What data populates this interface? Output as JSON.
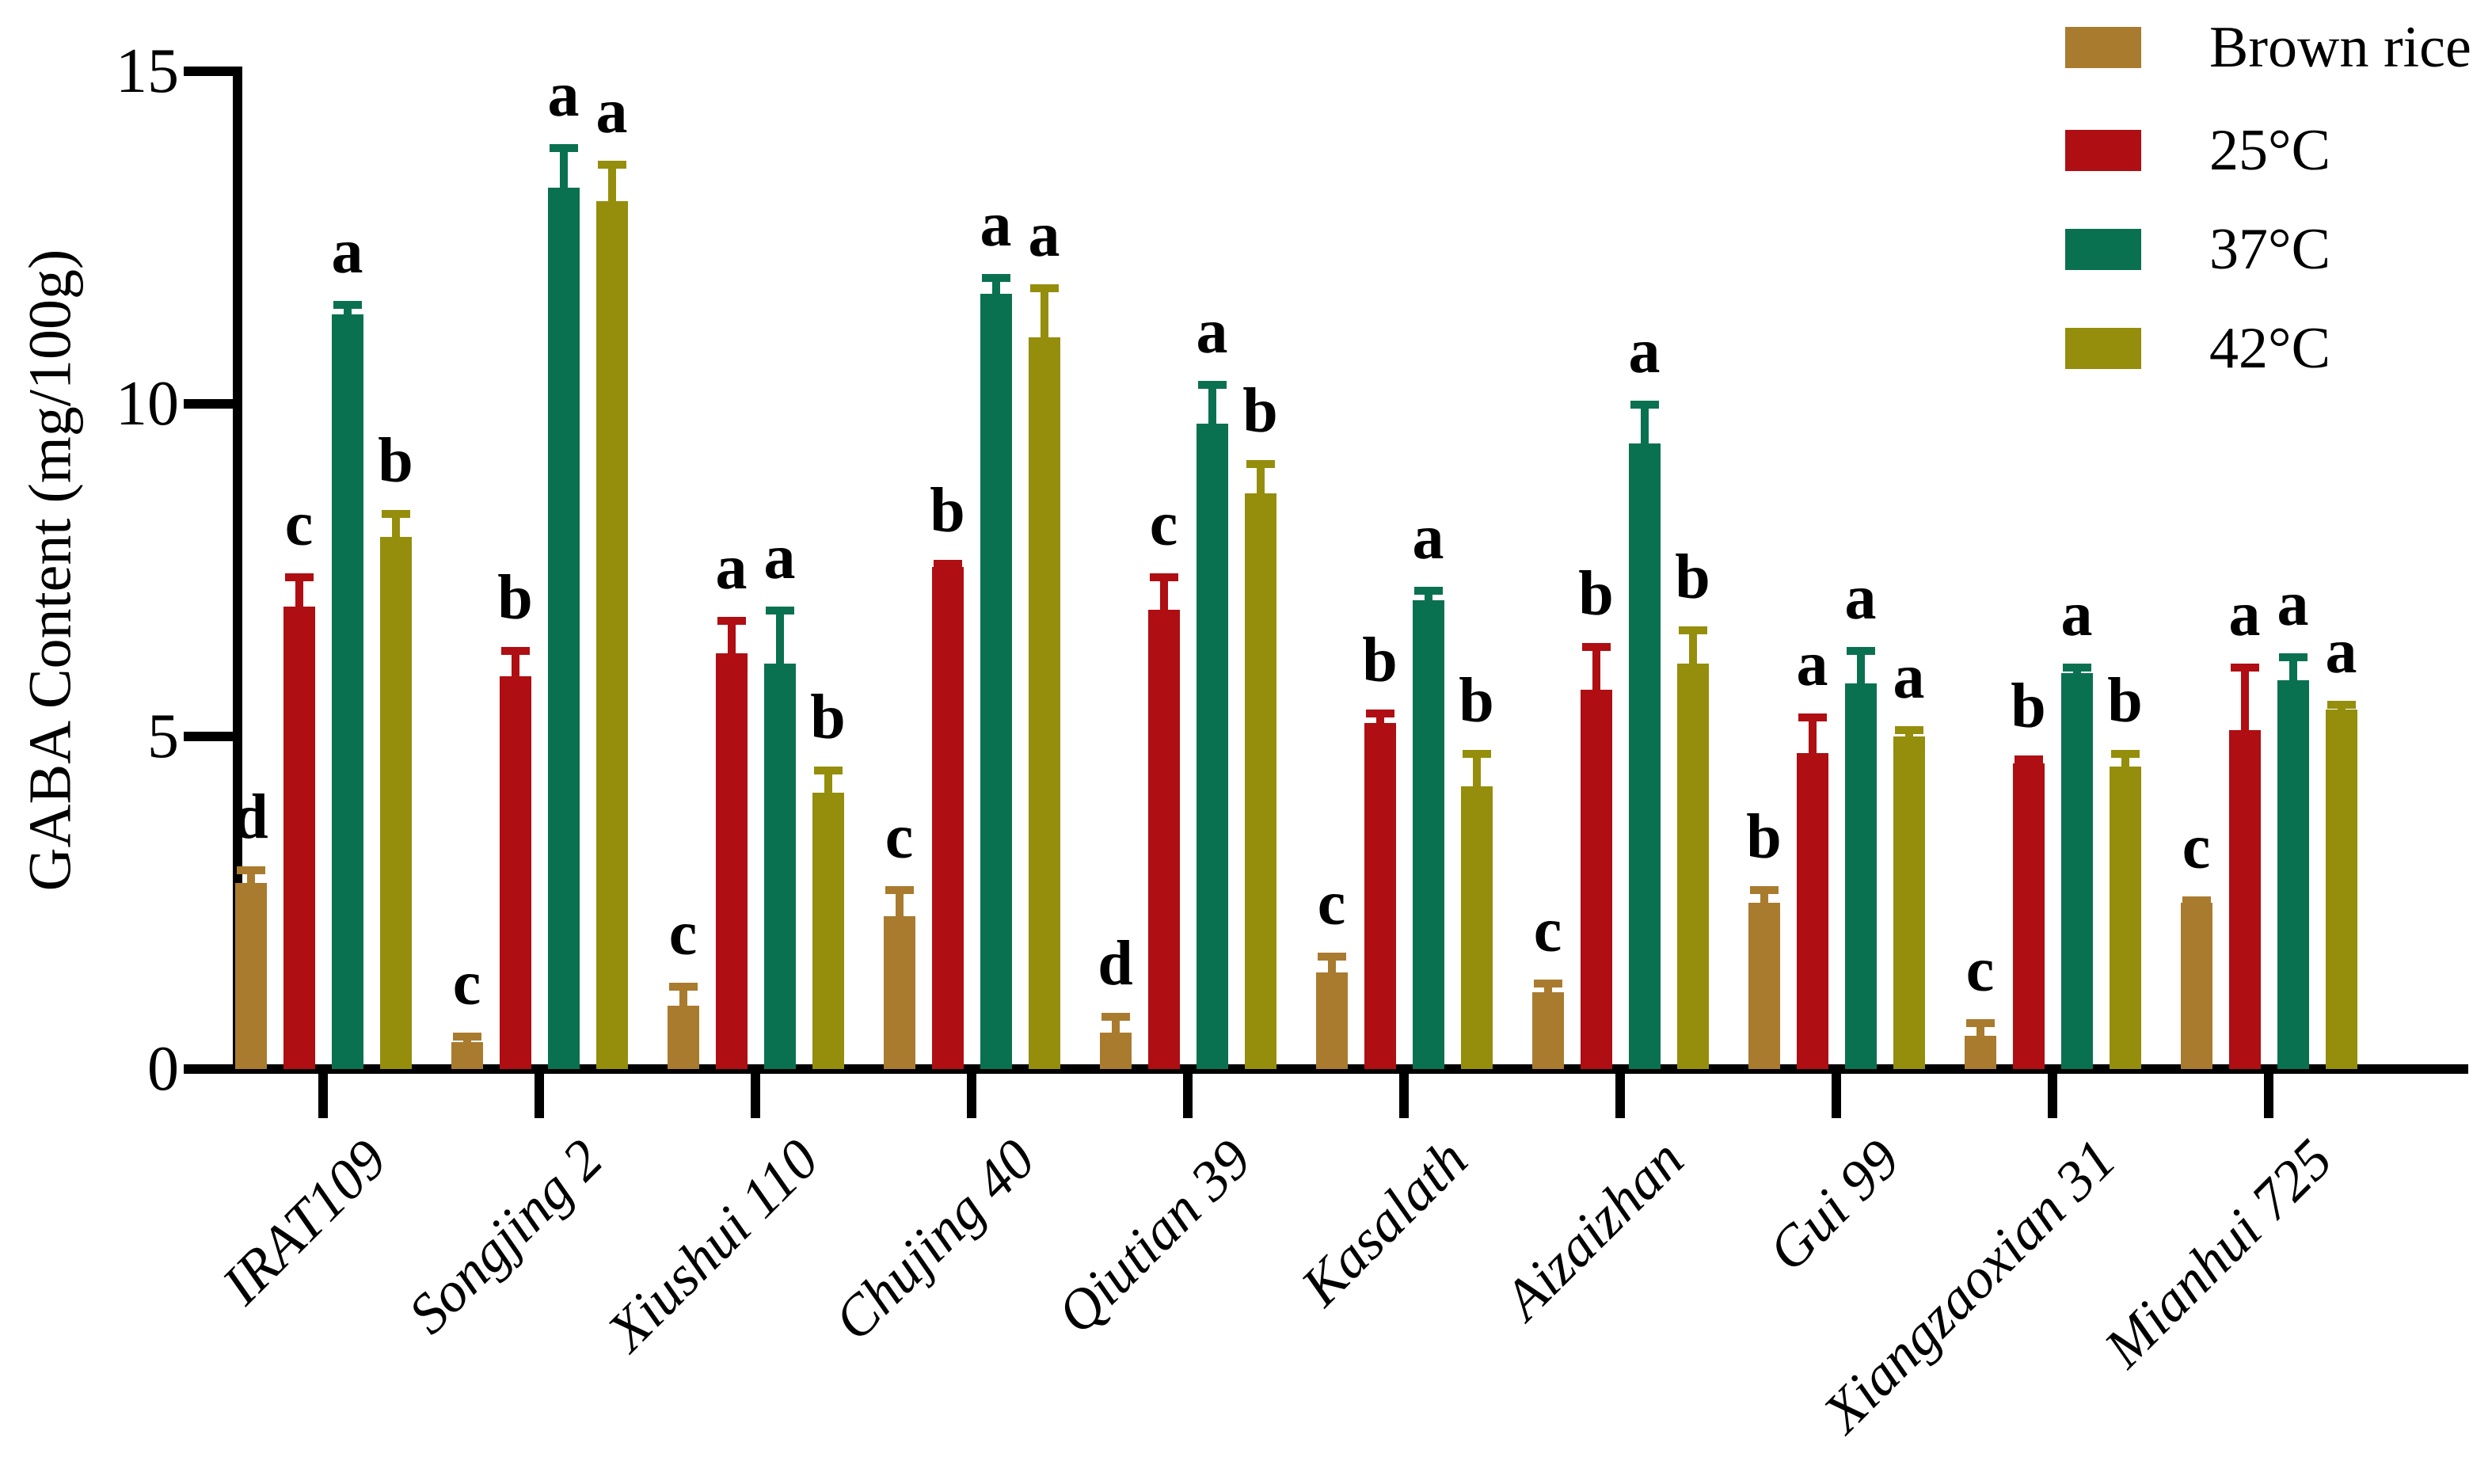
{
  "chart_data": {
    "type": "bar",
    "title": "",
    "xlabel": "",
    "ylabel": "GABA Content (mg/100g)",
    "ylim": [
      0,
      15
    ],
    "yticks": [
      0,
      5,
      10,
      15
    ],
    "grid": false,
    "legend_position": "top-right",
    "error_bars": "upper",
    "significance_letters": true,
    "categories": [
      "IRAT109",
      "Songjing 2",
      "Xiushui 110",
      "Chujing 40",
      "Qiutian 39",
      "Kasalath",
      "Aizaizhan",
      "Gui 99",
      "Xiangzaoxian 31",
      "Mianhui 725"
    ],
    "series": [
      {
        "name": "Brown rice",
        "color": "#A97B2F",
        "values": [
          2.8,
          0.4,
          0.95,
          2.3,
          0.55,
          1.45,
          1.15,
          2.5,
          0.5,
          2.5
        ],
        "errors": [
          0.25,
          0.15,
          0.35,
          0.45,
          0.3,
          0.3,
          0.2,
          0.25,
          0.25,
          0.1
        ],
        "letters": [
          "d",
          "c",
          "c",
          "c",
          "d",
          "c",
          "c",
          "b",
          "c",
          "c"
        ]
      },
      {
        "name": "25°C",
        "color": "#AF0E13",
        "values": [
          6.95,
          5.9,
          6.25,
          7.55,
          6.9,
          5.2,
          5.7,
          4.75,
          4.6,
          5.1
        ],
        "errors": [
          0.5,
          0.45,
          0.55,
          0.1,
          0.55,
          0.2,
          0.7,
          0.6,
          0.12,
          1.0
        ],
        "letters": [
          "c",
          "b",
          "a",
          "b",
          "c",
          "b",
          "b",
          "a",
          "b",
          "a"
        ]
      },
      {
        "name": "37°C",
        "color": "#0A7150",
        "values": [
          11.35,
          13.25,
          6.1,
          11.65,
          9.7,
          7.05,
          9.4,
          5.8,
          5.95,
          5.85
        ],
        "errors": [
          0.2,
          0.65,
          0.85,
          0.3,
          0.65,
          0.2,
          0.65,
          0.55,
          0.15,
          0.4
        ],
        "letters": [
          "a",
          "a",
          "a",
          "a",
          "a",
          "a",
          "a",
          "a",
          "a",
          "a"
        ]
      },
      {
        "name": "42°C",
        "color": "#948E0C",
        "values": [
          8.0,
          13.05,
          4.15,
          11.0,
          8.65,
          4.25,
          6.1,
          5.0,
          4.55,
          5.4
        ],
        "errors": [
          0.4,
          0.6,
          0.4,
          0.8,
          0.5,
          0.55,
          0.55,
          0.15,
          0.25,
          0.13
        ],
        "letters": [
          "b",
          "a",
          "b",
          "a",
          "b",
          "b",
          "b",
          "a",
          "b",
          "a"
        ]
      }
    ],
    "y_tick_labels": [
      "0",
      "5",
      "10",
      "15"
    ]
  }
}
